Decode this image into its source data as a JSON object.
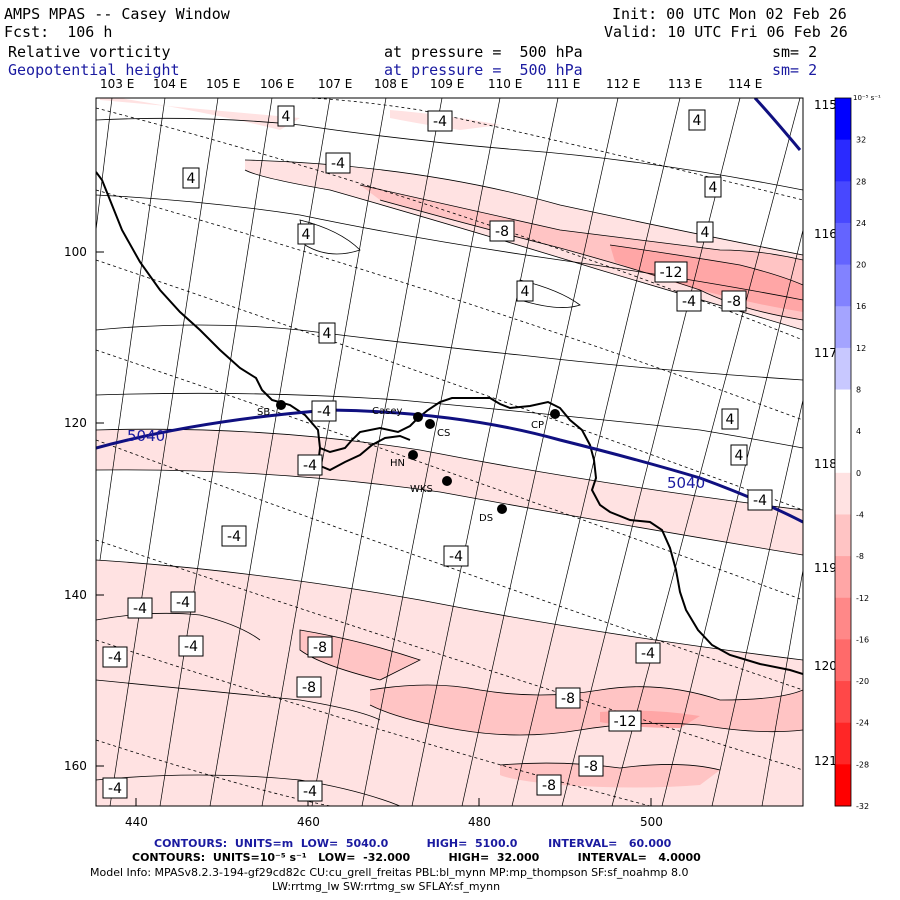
{
  "header": {
    "title": "AMPS MPAS -- Casey Window",
    "fcst": "Fcst:  106 h",
    "init": "Init: 00 UTC Mon 02 Feb 26",
    "valid": "Valid: 10 UTC Fri 06 Feb 26",
    "field1": "Relative vorticity",
    "field1_level": "at pressure =  500 hPa",
    "field1_sm": "sm= 2",
    "field2": "Geopotential height",
    "field2_level": "at pressure =  500 hPa",
    "field2_sm": "sm= 2"
  },
  "lon_labels_top": [
    "103 E",
    "104 E",
    "105 E",
    "106 E",
    "107 E",
    "108 E",
    "109 E",
    "110 E",
    "111 E",
    "112 E",
    "113 E",
    "114 E"
  ],
  "lon_labels_right": [
    "115 E",
    "116 E",
    "117 E",
    "118 E",
    "119 E",
    "120 E",
    "121 E"
  ],
  "y_ticks": [
    "100",
    "120",
    "140",
    "160"
  ],
  "x_ticks": [
    "440",
    "460",
    "480",
    "500"
  ],
  "stations": [
    {
      "name": "SB"
    },
    {
      "name": "Casey"
    },
    {
      "name": "CS"
    },
    {
      "name": "CP"
    },
    {
      "name": "HN"
    },
    {
      "name": "WKS"
    },
    {
      "name": "DS"
    }
  ],
  "height_contour_label": "5040",
  "vort_labels": [
    "4",
    "-4",
    "-8",
    "-12"
  ],
  "colorbar": {
    "unit": "10⁻⁵ s⁻¹",
    "labels": [
      "32",
      "28",
      "24",
      "20",
      "16",
      "12",
      "8",
      "4",
      "0",
      "-4",
      "-8",
      "-12",
      "-16",
      "-20",
      "-24",
      "-28",
      "-32"
    ],
    "colors": [
      "#0000ff",
      "#2a2aff",
      "#4848ff",
      "#6464ff",
      "#8282ff",
      "#a4a4ff",
      "#c8c8ff",
      "#ffffff",
      "#ffffff",
      "#ffe2e2",
      "#ffc4c4",
      "#ffa6a6",
      "#ff8888",
      "#ff6a6a",
      "#ff4848",
      "#ff2626",
      "#ff0000"
    ]
  },
  "footer": {
    "contours_height": "CONTOURS:  UNITS=m  LOW=  5040.0          HIGH=  5100.0        INTERVAL=   60.000",
    "contours_vort": "CONTOURS:  UNITS=10⁻⁵ s⁻¹   LOW=  -32.000          HIGH=  32.000          INTERVAL=   4.0000",
    "model_info": "Model Info: MPASv8.2.3-194-gf29cd82c CU:cu_grell_freitas PBL:bl_mynn MP:mp_thompson SF:sf_noahmp 8.0",
    "model_info2": "LW:rrtmg_lw SW:rrtmg_sw SFLAY:sf_mynn"
  }
}
